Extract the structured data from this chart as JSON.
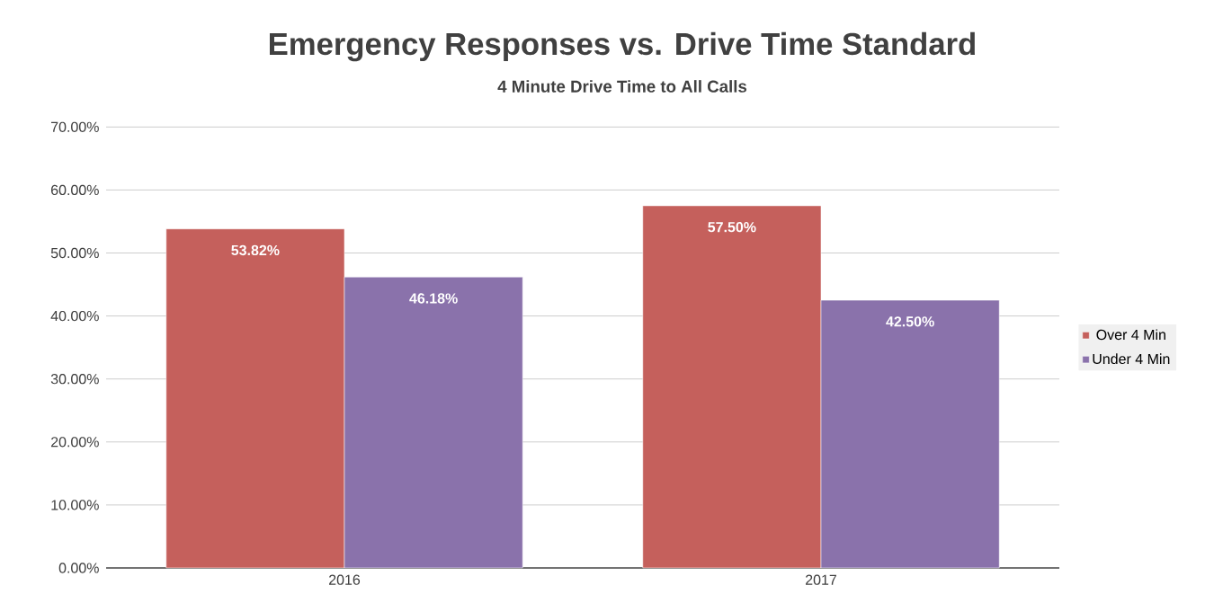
{
  "chart_data": {
    "type": "bar",
    "title": "Emergency Responses vs. Drive Time Standard",
    "subtitle": "4 Minute Drive Time to All Calls",
    "categories": [
      "2016",
      "2017"
    ],
    "series": [
      {
        "name": "Over 4 Min",
        "color": "#c5605c",
        "values": [
          53.82,
          57.5
        ],
        "value_labels": [
          "53.82%",
          "57.50%"
        ]
      },
      {
        "name": "Under 4 Min",
        "color": "#8a72ab",
        "values": [
          46.18,
          42.5
        ],
        "value_labels": [
          "46.18%",
          "42.50%"
        ]
      }
    ],
    "ylim": [
      0,
      70
    ],
    "yticks": [
      {
        "value": 0,
        "label": "0.00%"
      },
      {
        "value": 10,
        "label": "10.00%"
      },
      {
        "value": 20,
        "label": "20.00%"
      },
      {
        "value": 30,
        "label": "30.00%"
      },
      {
        "value": 40,
        "label": "40.00%"
      },
      {
        "value": 50,
        "label": "50.00%"
      },
      {
        "value": 60,
        "label": "60.00%"
      },
      {
        "value": 70,
        "label": "70.00%"
      }
    ],
    "grid": "y",
    "legend": "right"
  }
}
